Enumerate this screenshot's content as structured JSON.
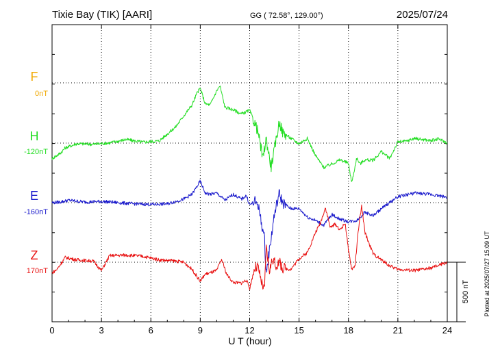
{
  "header": {
    "station": "Tixie Bay (TIK)  [AARI]",
    "coords": "GG ( 72.58°, 129.00°)",
    "date": "2025/07/24"
  },
  "footer": {
    "plotted": "Plotted at 2025/07/27 15:09 UT",
    "scale_bar": "500 nT"
  },
  "colors": {
    "F": "#f0a800",
    "H": "#22dd22",
    "E": "#1a1acc",
    "Z": "#e81010",
    "frame": "#000000"
  },
  "chart_data": {
    "type": "line",
    "xlabel": "U T (hour)",
    "xlim": [
      0,
      24
    ],
    "xticks": [
      0,
      3,
      6,
      9,
      12,
      15,
      18,
      21,
      24
    ],
    "tick_labels": [
      "0",
      "3",
      "6",
      "9",
      "12",
      "15",
      "18",
      "21",
      "24"
    ],
    "grid": true,
    "scale_nT": 500,
    "series": [
      {
        "name": "F",
        "offset": "0nT",
        "x": [],
        "y": []
      },
      {
        "name": "H",
        "offset": "-120nT",
        "x": [
          0,
          0.5,
          0.8,
          1.5,
          2.5,
          3.5,
          4.5,
          5.5,
          6.5,
          7.5,
          8.0,
          8.5,
          8.8,
          9.0,
          9.3,
          9.6,
          10.0,
          10.2,
          10.5,
          11.0,
          11.5,
          12.0,
          12.5,
          12.8,
          13.0,
          13.3,
          13.5,
          13.8,
          14.0,
          14.5,
          15.0,
          15.5,
          16.0,
          16.5,
          17.0,
          17.5,
          18.0,
          18.2,
          18.5,
          18.7,
          19.0,
          19.5,
          20.0,
          20.5,
          21.0,
          21.5,
          22.0,
          22.5,
          23.0,
          23.5,
          24.0
        ],
        "y": [
          -130,
          -85,
          -40,
          -5,
          -10,
          2,
          30,
          8,
          18,
          135,
          230,
          320,
          420,
          460,
          330,
          320,
          440,
          480,
          300,
          280,
          245,
          275,
          100,
          -130,
          40,
          -200,
          -60,
          180,
          90,
          40,
          -5,
          40,
          -105,
          -205,
          -175,
          -140,
          -170,
          -335,
          -125,
          -175,
          -140,
          -145,
          -70,
          -130,
          10,
          15,
          40,
          30,
          20,
          35,
          0
        ]
      },
      {
        "name": "E",
        "offset": "-160nT",
        "x": [
          0,
          0.5,
          1.0,
          2.0,
          3.0,
          4.0,
          5.0,
          6.0,
          7.0,
          8.0,
          8.5,
          9.0,
          9.3,
          9.6,
          10.0,
          10.5,
          11.0,
          11.5,
          11.8,
          12.0,
          12.3,
          12.5,
          12.7,
          12.9,
          13.0,
          13.2,
          13.5,
          13.8,
          14.0,
          14.5,
          15.0,
          15.5,
          16.0,
          16.5,
          17.0,
          17.5,
          18.0,
          18.5,
          19.0,
          19.5,
          20.0,
          20.5,
          21.0,
          22.0,
          23.0,
          24.0
        ],
        "y": [
          0,
          5,
          20,
          5,
          10,
          0,
          -10,
          -15,
          -10,
          30,
          70,
          180,
          80,
          70,
          80,
          20,
          70,
          30,
          60,
          -20,
          10,
          -10,
          -160,
          -300,
          -600,
          -400,
          -100,
          80,
          0,
          -50,
          -50,
          -120,
          -150,
          -190,
          -100,
          -140,
          -160,
          -150,
          -80,
          -110,
          -50,
          0,
          50,
          80,
          70,
          45
        ]
      },
      {
        "name": "Z",
        "offset": "170nT",
        "x": [
          0,
          0.3,
          0.8,
          1.5,
          2.5,
          3.0,
          3.5,
          4.5,
          5.5,
          6.5,
          7.5,
          8.0,
          8.5,
          8.8,
          9.0,
          9.3,
          9.6,
          10.0,
          10.3,
          10.6,
          11.0,
          11.5,
          11.8,
          12.0,
          12.3,
          12.5,
          12.7,
          12.9,
          13.0,
          13.2,
          13.4,
          13.6,
          13.8,
          14.0,
          14.5,
          15.0,
          15.5,
          16.0,
          16.3,
          16.6,
          16.9,
          17.2,
          17.5,
          17.8,
          18.0,
          18.2,
          18.4,
          18.6,
          18.8,
          19.0,
          19.5,
          20.0,
          20.5,
          21.0,
          22.0,
          23.0,
          24.0
        ],
        "y": [
          -90,
          -60,
          40,
          20,
          10,
          -70,
          55,
          60,
          50,
          20,
          10,
          0,
          -60,
          -120,
          -160,
          -100,
          -90,
          -70,
          25,
          -100,
          -170,
          -175,
          -150,
          -220,
          -50,
          -40,
          -160,
          -250,
          130,
          -70,
          30,
          -30,
          0,
          -50,
          -60,
          30,
          80,
          250,
          330,
          460,
          290,
          320,
          270,
          330,
          100,
          -60,
          -30,
          270,
          470,
          250,
          70,
          20,
          -30,
          -60,
          -70,
          -50,
          0
        ]
      }
    ]
  }
}
